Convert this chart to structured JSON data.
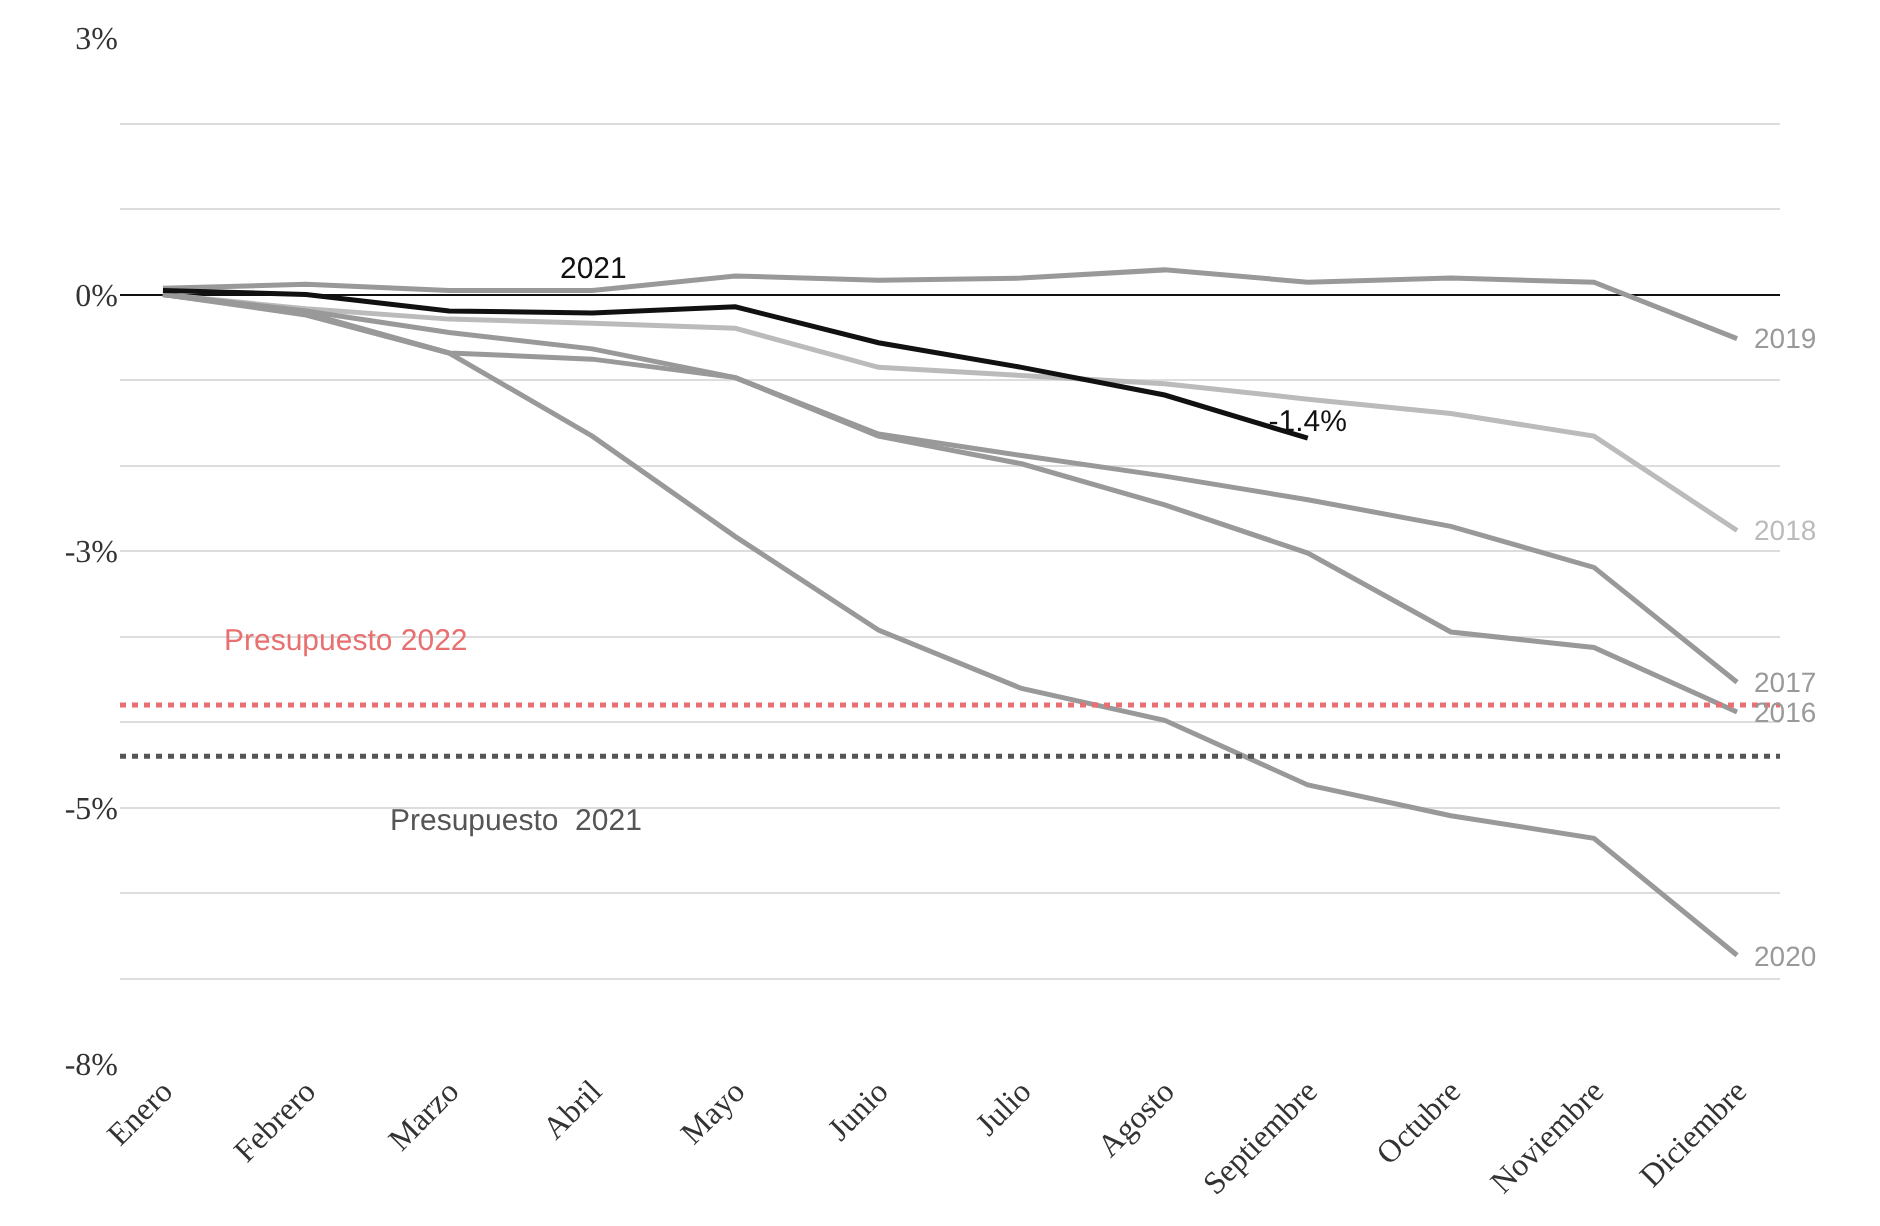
{
  "chart_data": {
    "type": "line",
    "categories": [
      "Enero",
      "Febrero",
      "Marzo",
      "Abril",
      "Mayo",
      "Junio",
      "Julio",
      "Agosto",
      "Septiembre",
      "Octubre",
      "Noviembre",
      "Diciembre"
    ],
    "series": [
      {
        "name": "2019",
        "color": "#999999",
        "values": [
          0.06,
          0.1,
          0.04,
          0.04,
          0.18,
          0.14,
          0.16,
          0.24,
          0.12,
          0.16,
          0.12,
          -0.43
        ]
      },
      {
        "name": "2018",
        "color": "#bbbbbb",
        "values": [
          0,
          -0.14,
          -0.24,
          -0.28,
          -0.33,
          -0.71,
          -0.79,
          -0.87,
          -1.02,
          -1.16,
          -1.38,
          -2.3
        ]
      },
      {
        "name": "2017",
        "color": "#999999",
        "values": [
          0,
          -0.16,
          -0.37,
          -0.53,
          -0.81,
          -1.36,
          -1.57,
          -1.77,
          -2.0,
          -2.26,
          -2.66,
          -3.78
        ]
      },
      {
        "name": "2016",
        "color": "#999999",
        "values": [
          0,
          -0.18,
          -0.57,
          -0.63,
          -0.81,
          -1.38,
          -1.65,
          -2.05,
          -2.52,
          -3.29,
          -3.44,
          -4.07
        ]
      },
      {
        "name": "2020",
        "color": "#999999",
        "values": [
          0,
          -0.2,
          -0.57,
          -1.38,
          -2.36,
          -3.27,
          -3.84,
          -4.15,
          -4.78,
          -5.08,
          -5.3,
          -6.44
        ]
      },
      {
        "name": "2021",
        "color": "#111111",
        "values": [
          0.04,
          0,
          -0.16,
          -0.18,
          -0.12,
          -0.47,
          -0.71,
          -0.98,
          -1.4,
          null,
          null,
          null
        ],
        "value_labels": [
          null,
          null,
          null,
          null,
          null,
          null,
          null,
          null,
          "-1.4%",
          null,
          null,
          null
        ]
      }
    ],
    "ref_lines": [
      {
        "axis": "y",
        "value": -4.0,
        "label": "Presupuesto 2022",
        "color": "#e87070",
        "line_style": "dotted"
      },
      {
        "axis": "y",
        "value": -4.5,
        "label": "Presupuesto  2021",
        "color": "#555555",
        "line_style": "dotted"
      }
    ],
    "ylim": [
      -7.5,
      2.5
    ],
    "yticks": [
      {
        "value": 2.5,
        "label": "3%"
      },
      {
        "value": 1.6667,
        "label": null
      },
      {
        "value": 0.8333,
        "label": null
      },
      {
        "value": 0,
        "label": "0%"
      },
      {
        "value": -0.8333,
        "label": null
      },
      {
        "value": -1.6667,
        "label": null
      },
      {
        "value": -2.5,
        "label": "-3%"
      },
      {
        "value": -3.3333,
        "label": null
      },
      {
        "value": -4.1667,
        "label": null
      },
      {
        "value": -5,
        "label": "-5%"
      },
      {
        "value": -5.8333,
        "label": null
      },
      {
        "value": -6.6667,
        "label": null
      },
      {
        "value": -7.5,
        "label": "-8%"
      }
    ],
    "grid": "y",
    "legend": false,
    "marker": "none",
    "line_style": "solid"
  }
}
